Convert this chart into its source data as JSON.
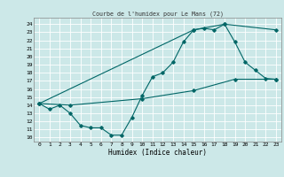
{
  "title": "Courbe de l'humidex pour Le Mans (72)",
  "xlabel": "Humidex (Indice chaleur)",
  "bg_color": "#cce8e8",
  "grid_color": "#ffffff",
  "line_color": "#006666",
  "xlim": [
    -0.5,
    23.5
  ],
  "ylim": [
    9.5,
    24.8
  ],
  "yticks": [
    10,
    11,
    12,
    13,
    14,
    15,
    16,
    17,
    18,
    19,
    20,
    21,
    22,
    23,
    24
  ],
  "xticks": [
    0,
    1,
    2,
    3,
    4,
    5,
    6,
    7,
    8,
    9,
    10,
    11,
    12,
    13,
    14,
    15,
    16,
    17,
    18,
    19,
    20,
    21,
    22,
    23
  ],
  "line1_x": [
    0,
    1,
    2,
    3,
    4,
    5,
    6,
    7,
    8,
    9,
    10,
    11,
    12,
    13,
    14,
    15,
    16,
    17,
    18,
    19,
    20,
    21,
    22,
    23
  ],
  "line1_y": [
    14.2,
    13.5,
    14.0,
    13.0,
    11.5,
    11.2,
    11.2,
    10.3,
    10.3,
    12.5,
    15.2,
    17.5,
    18.0,
    19.3,
    21.8,
    23.3,
    23.5,
    23.3,
    24.0,
    21.8,
    19.3,
    18.3,
    17.3,
    17.2
  ],
  "line2_x": [
    0,
    3,
    10,
    15,
    19,
    23
  ],
  "line2_y": [
    14.2,
    14.0,
    14.8,
    15.8,
    17.2,
    17.2
  ],
  "line3_x": [
    0,
    15,
    18,
    23
  ],
  "line3_y": [
    14.2,
    23.3,
    24.0,
    23.3
  ]
}
